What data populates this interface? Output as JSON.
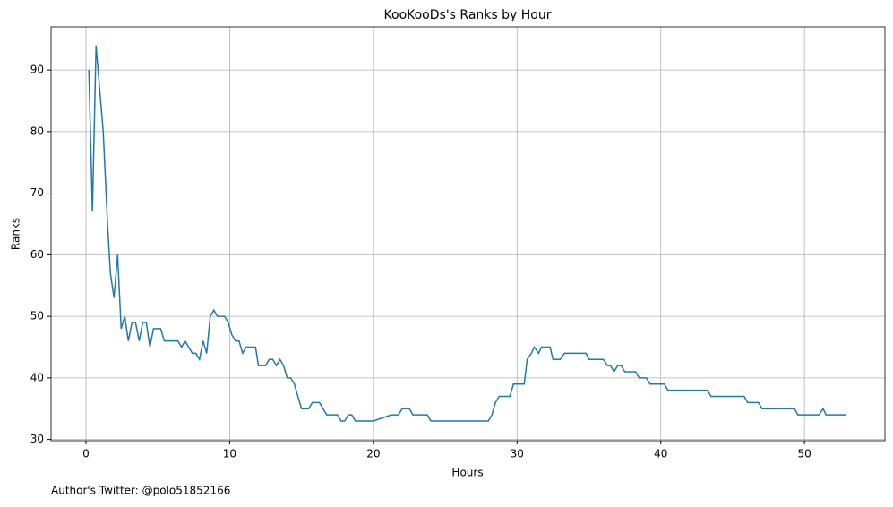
{
  "chart_data": {
    "type": "line",
    "title": "KooKooDs's Ranks by Hour",
    "xlabel": "Hours",
    "ylabel": "Ranks",
    "footer": "Author's Twitter: @polo51852166",
    "x": [
      0.2,
      0.45,
      0.7,
      1.2,
      1.5,
      1.7,
      1.95,
      2.2,
      2.45,
      2.7,
      2.95,
      3.2,
      3.45,
      3.7,
      3.95,
      4.2,
      4.45,
      4.7,
      5.2,
      5.45,
      6.4,
      6.65,
      6.9,
      7.4,
      7.65,
      7.9,
      8.15,
      8.4,
      8.65,
      8.9,
      9.15,
      9.65,
      9.9,
      10.15,
      10.4,
      10.65,
      10.9,
      11.15,
      11.8,
      12.0,
      12.5,
      12.75,
      13.0,
      13.25,
      13.5,
      13.75,
      14.0,
      14.25,
      14.5,
      14.75,
      15.0,
      15.5,
      15.75,
      16.25,
      16.5,
      16.75,
      17.5,
      17.75,
      18.0,
      18.25,
      18.5,
      18.75,
      20.0,
      21.25,
      21.75,
      22.0,
      22.5,
      22.75,
      23.75,
      24.0,
      28.0,
      28.25,
      28.5,
      28.75,
      29.5,
      29.75,
      30.5,
      30.7,
      31.0,
      31.2,
      31.5,
      31.7,
      32.3,
      32.5,
      33.0,
      33.3,
      34.8,
      35.0,
      36.0,
      36.3,
      36.5,
      36.75,
      37.0,
      37.25,
      37.5,
      38.25,
      38.5,
      39.0,
      39.25,
      40.25,
      40.5,
      43.25,
      43.5,
      45.8,
      46.05,
      46.8,
      47.05,
      49.3,
      49.55,
      51.0,
      51.3,
      51.5,
      52.9
    ],
    "series": [
      {
        "name": "Ranks",
        "color": "#1f77b4",
        "values": [
          90,
          67,
          94,
          80,
          65,
          57,
          53,
          60,
          48,
          50,
          46,
          49,
          49,
          46,
          49,
          49,
          45,
          48,
          48,
          46,
          46,
          45,
          46,
          44,
          44,
          43,
          46,
          44,
          50,
          51,
          50,
          50,
          49,
          47,
          46,
          46,
          44,
          45,
          45,
          42,
          42,
          43,
          43,
          42,
          43,
          42,
          40,
          40,
          39,
          37,
          35,
          35,
          36,
          36,
          35,
          34,
          34,
          33,
          33,
          34,
          34,
          33,
          33,
          34,
          34,
          35,
          35,
          34,
          34,
          33,
          33,
          34,
          36,
          37,
          37,
          39,
          39,
          43,
          44,
          45,
          44,
          45,
          45,
          43,
          43,
          44,
          44,
          43,
          43,
          42,
          42,
          41,
          42,
          42,
          41,
          41,
          40,
          40,
          39,
          39,
          38,
          38,
          37,
          37,
          36,
          36,
          35,
          35,
          34,
          34,
          35,
          34,
          34
        ]
      }
    ],
    "xlim": [
      -2.43,
      55.6
    ],
    "ylim": [
      29.8,
      97
    ],
    "xticks": [
      0,
      10,
      20,
      30,
      40,
      50
    ],
    "yticks": [
      30,
      40,
      50,
      60,
      70,
      80,
      90
    ],
    "grid": true
  }
}
